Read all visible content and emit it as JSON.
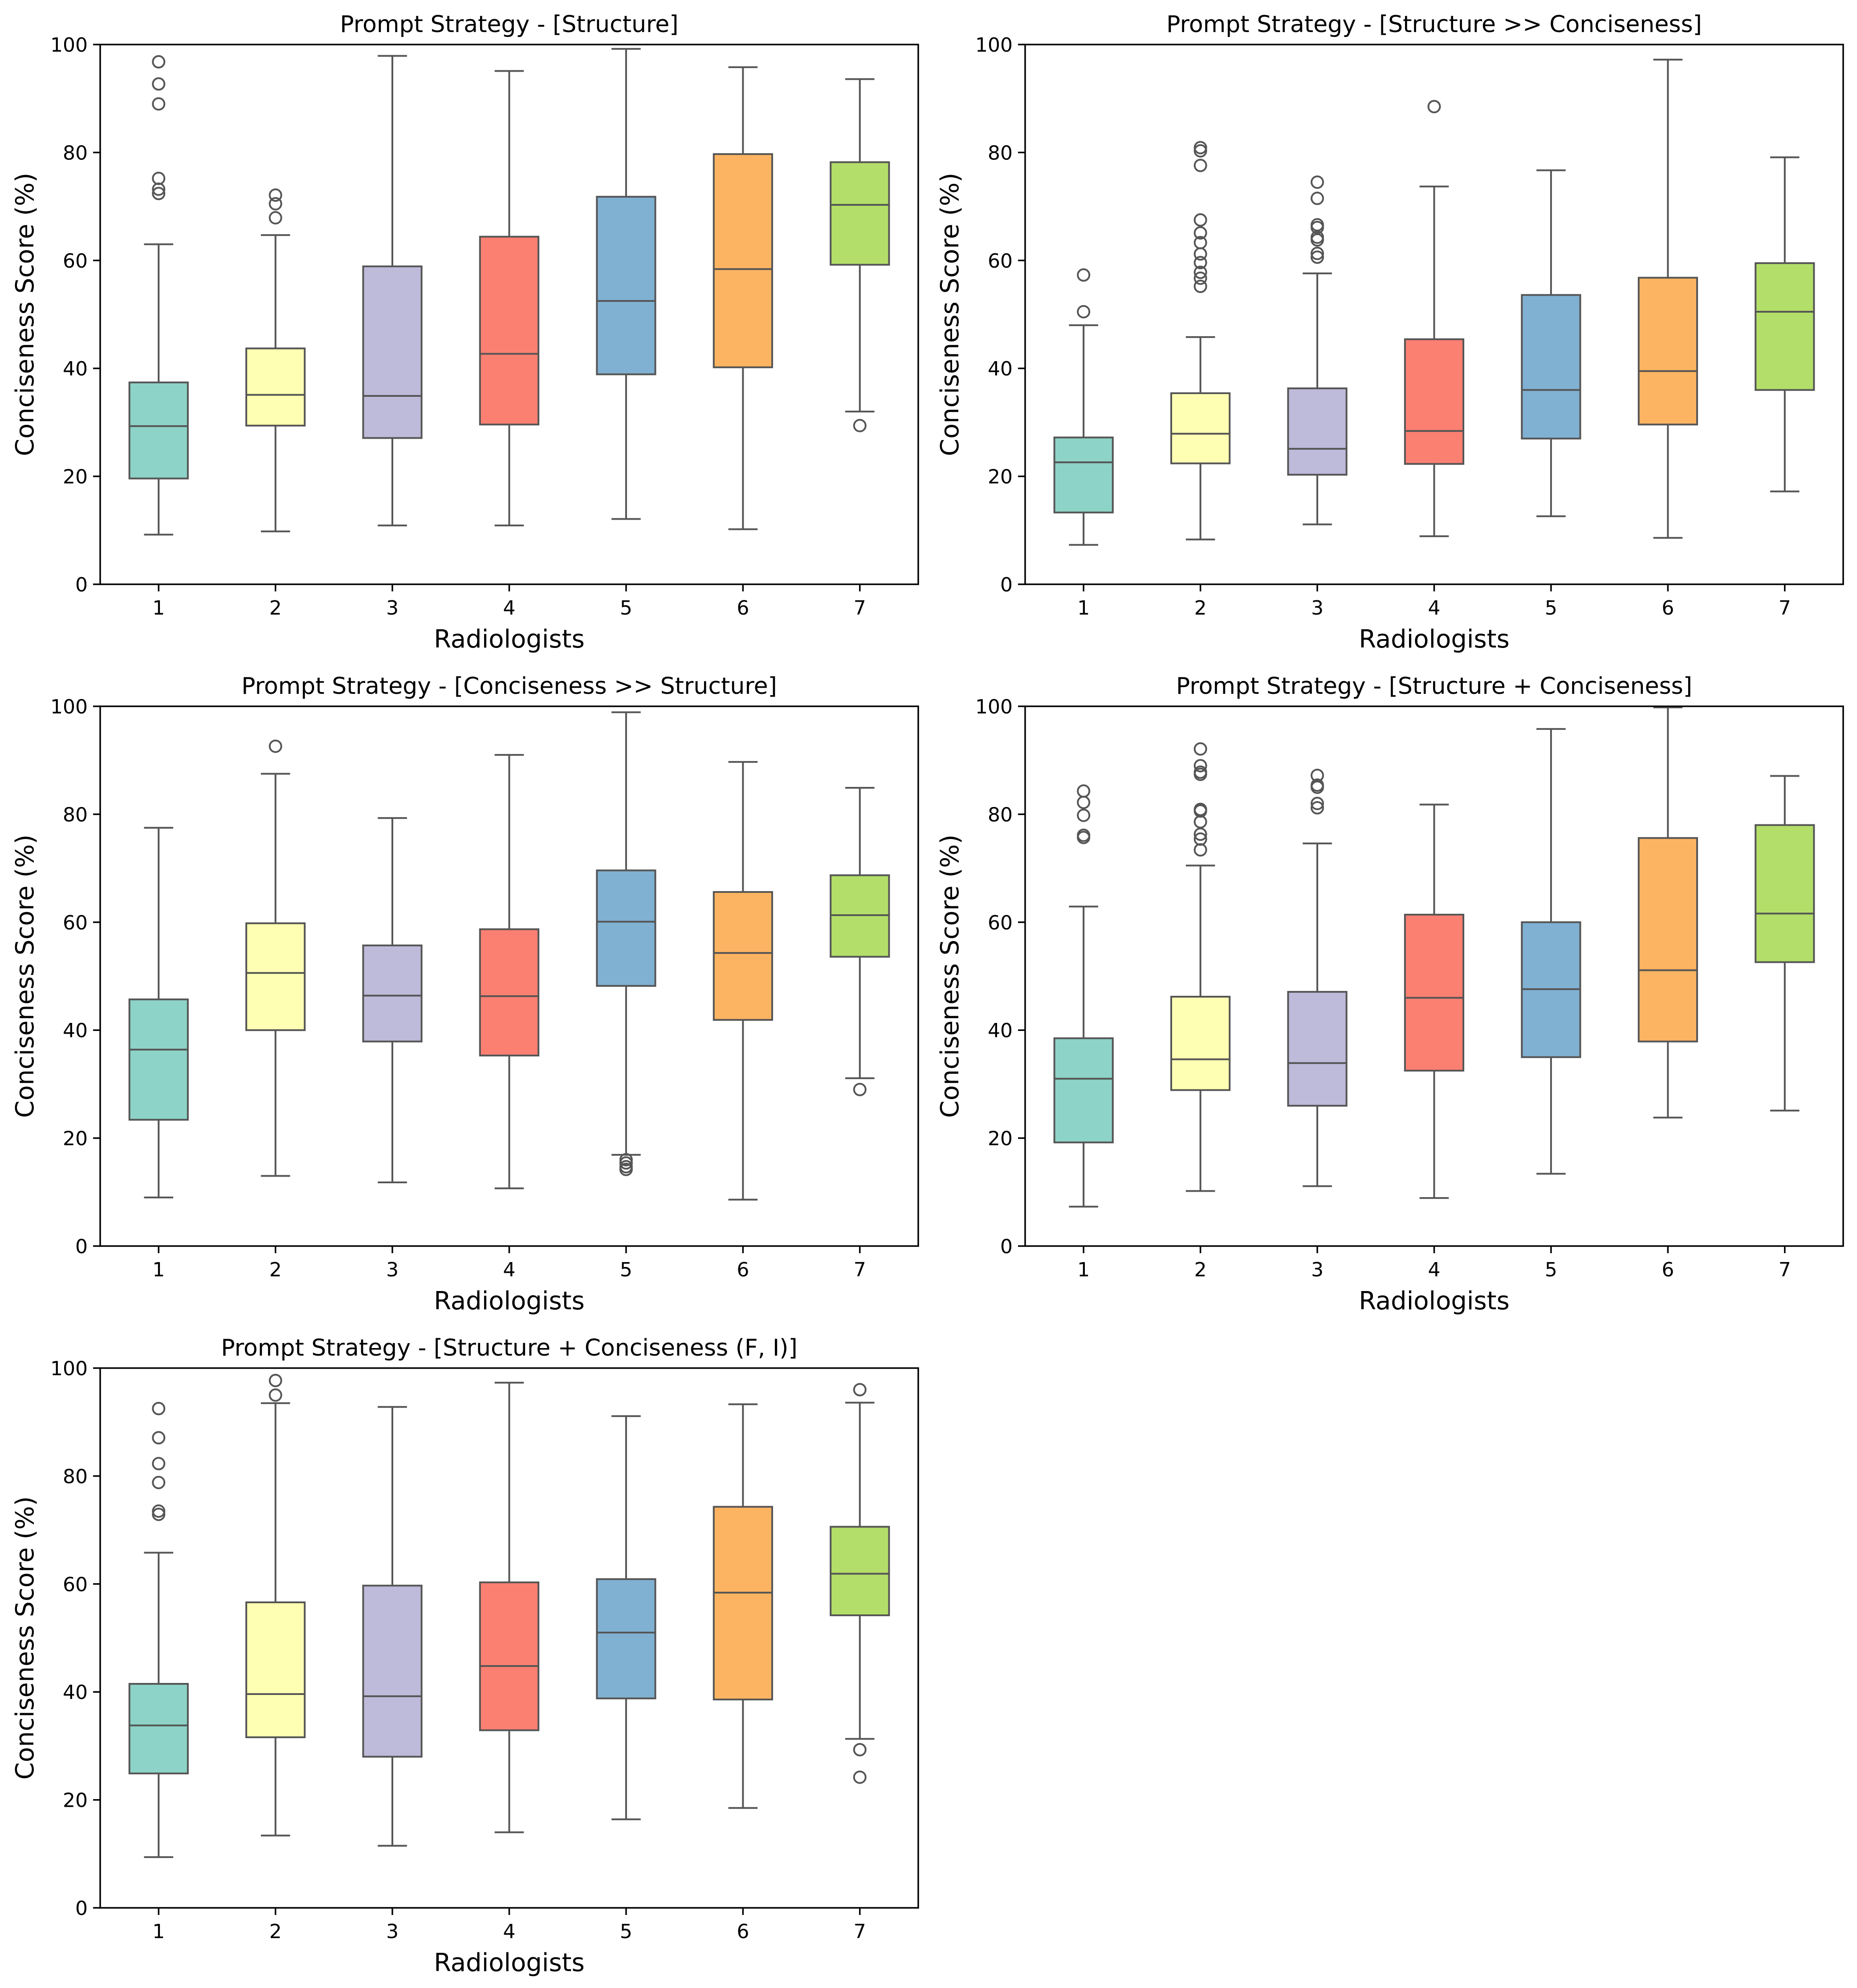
{
  "chart_data": [
    {
      "type": "box",
      "title": "Prompt Strategy - [Structure]",
      "xlabel": "Radiologists",
      "ylabel": "Conciseness Score (%)",
      "ylim": [
        0,
        100
      ],
      "yticks": [
        0,
        20,
        40,
        60,
        80,
        100
      ],
      "categories": [
        "1",
        "2",
        "3",
        "4",
        "5",
        "6",
        "7"
      ],
      "colors": [
        "#8dd3c7",
        "#ffffb3",
        "#bebada",
        "#fb8072",
        "#80b1d3",
        "#fdb462",
        "#b3de69"
      ],
      "boxes": [
        {
          "whislo": 9.2,
          "q1": 19.6,
          "med": 29.3,
          "q3": 37.4,
          "whishi": 63.0,
          "fliers": [
            72.4,
            73.2,
            75.2,
            89.0,
            92.7,
            96.8
          ]
        },
        {
          "whislo": 9.8,
          "q1": 29.4,
          "med": 35.1,
          "q3": 43.7,
          "whishi": 64.7,
          "fliers": [
            67.9,
            70.5,
            72.1
          ]
        },
        {
          "whislo": 10.9,
          "q1": 27.1,
          "med": 34.9,
          "q3": 58.9,
          "whishi": 97.9,
          "fliers": []
        },
        {
          "whislo": 10.9,
          "q1": 29.6,
          "med": 42.7,
          "q3": 64.4,
          "whishi": 95.1,
          "fliers": []
        },
        {
          "whislo": 12.1,
          "q1": 38.9,
          "med": 52.5,
          "q3": 71.8,
          "whishi": 99.2,
          "fliers": []
        },
        {
          "whislo": 10.2,
          "q1": 40.2,
          "med": 58.4,
          "q3": 79.7,
          "whishi": 95.8,
          "fliers": []
        },
        {
          "whislo": 32.0,
          "q1": 59.2,
          "med": 70.3,
          "q3": 78.2,
          "whishi": 93.6,
          "fliers": [
            29.4
          ]
        }
      ]
    },
    {
      "type": "box",
      "title": "Prompt Strategy - [Structure >> Conciseness]",
      "xlabel": "Radiologists",
      "ylabel": "Conciseness Score (%)",
      "ylim": [
        0,
        100
      ],
      "yticks": [
        0,
        20,
        40,
        60,
        80,
        100
      ],
      "categories": [
        "1",
        "2",
        "3",
        "4",
        "5",
        "6",
        "7"
      ],
      "colors": [
        "#8dd3c7",
        "#ffffb3",
        "#bebada",
        "#fb8072",
        "#80b1d3",
        "#fdb462",
        "#b3de69"
      ],
      "boxes": [
        {
          "whislo": 7.3,
          "q1": 13.3,
          "med": 22.6,
          "q3": 27.2,
          "whishi": 48.0,
          "fliers": [
            50.5,
            57.3
          ]
        },
        {
          "whislo": 8.3,
          "q1": 22.4,
          "med": 27.9,
          "q3": 35.4,
          "whishi": 45.8,
          "fliers": [
            55.2,
            56.7,
            57.8,
            59.6,
            61.2,
            63.3,
            65.1,
            67.5,
            77.6,
            80.3,
            80.9
          ]
        },
        {
          "whislo": 11.1,
          "q1": 20.3,
          "med": 25.1,
          "q3": 36.3,
          "whishi": 57.6,
          "fliers": [
            60.6,
            61.3,
            63.8,
            64.3,
            66.1,
            66.6,
            71.5,
            74.5
          ]
        },
        {
          "whislo": 8.9,
          "q1": 22.3,
          "med": 28.4,
          "q3": 45.4,
          "whishi": 73.7,
          "fliers": [
            88.5
          ]
        },
        {
          "whislo": 12.6,
          "q1": 27.0,
          "med": 36.0,
          "q3": 53.6,
          "whishi": 76.7,
          "fliers": []
        },
        {
          "whislo": 8.6,
          "q1": 29.6,
          "med": 39.5,
          "q3": 56.8,
          "whishi": 97.2,
          "fliers": []
        },
        {
          "whislo": 17.2,
          "q1": 36.0,
          "med": 50.5,
          "q3": 59.5,
          "whishi": 79.1,
          "fliers": []
        }
      ]
    },
    {
      "type": "box",
      "title": "Prompt Strategy - [Conciseness >> Structure]",
      "xlabel": "Radiologists",
      "ylabel": "Conciseness Score (%)",
      "ylim": [
        0,
        100
      ],
      "yticks": [
        0,
        20,
        40,
        60,
        80,
        100
      ],
      "categories": [
        "1",
        "2",
        "3",
        "4",
        "5",
        "6",
        "7"
      ],
      "colors": [
        "#8dd3c7",
        "#ffffb3",
        "#bebada",
        "#fb8072",
        "#80b1d3",
        "#fdb462",
        "#b3de69"
      ],
      "boxes": [
        {
          "whislo": 9.0,
          "q1": 23.4,
          "med": 36.4,
          "q3": 45.7,
          "whishi": 77.5,
          "fliers": []
        },
        {
          "whislo": 13.0,
          "q1": 40.0,
          "med": 50.6,
          "q3": 59.8,
          "whishi": 87.5,
          "fliers": [
            92.6
          ]
        },
        {
          "whislo": 11.8,
          "q1": 37.9,
          "med": 46.4,
          "q3": 55.7,
          "whishi": 79.3,
          "fliers": []
        },
        {
          "whislo": 10.7,
          "q1": 35.3,
          "med": 46.3,
          "q3": 58.7,
          "whishi": 91.0,
          "fliers": []
        },
        {
          "whislo": 16.9,
          "q1": 48.2,
          "med": 60.1,
          "q3": 69.6,
          "whishi": 98.9,
          "fliers": [
            14.2,
            14.7,
            15.4,
            16.0
          ]
        },
        {
          "whislo": 8.6,
          "q1": 41.9,
          "med": 54.3,
          "q3": 65.6,
          "whishi": 89.7,
          "fliers": []
        },
        {
          "whislo": 31.1,
          "q1": 53.6,
          "med": 61.3,
          "q3": 68.7,
          "whishi": 84.9,
          "fliers": [
            29.0
          ]
        }
      ]
    },
    {
      "type": "box",
      "title": "Prompt Strategy - [Structure + Conciseness]",
      "xlabel": "Radiologists",
      "ylabel": "Conciseness Score (%)",
      "ylim": [
        0,
        100
      ],
      "yticks": [
        0,
        20,
        40,
        60,
        80,
        100
      ],
      "categories": [
        "1",
        "2",
        "3",
        "4",
        "5",
        "6",
        "7"
      ],
      "colors": [
        "#8dd3c7",
        "#ffffb3",
        "#bebada",
        "#fb8072",
        "#80b1d3",
        "#fdb462",
        "#b3de69"
      ],
      "boxes": [
        {
          "whislo": 7.3,
          "q1": 19.2,
          "med": 31.0,
          "q3": 38.5,
          "whishi": 62.9,
          "fliers": [
            75.7,
            76.1,
            79.8,
            82.2,
            84.3
          ]
        },
        {
          "whislo": 10.2,
          "q1": 28.9,
          "med": 34.6,
          "q3": 46.2,
          "whishi": 70.5,
          "fliers": [
            73.4,
            75.4,
            76.3,
            78.6,
            80.6,
            80.9,
            87.4,
            87.8,
            89.0,
            92.1
          ]
        },
        {
          "whislo": 11.1,
          "q1": 26.0,
          "med": 33.9,
          "q3": 47.1,
          "whishi": 74.6,
          "fliers": [
            81.2,
            82.0,
            85.0,
            85.4,
            87.2
          ]
        },
        {
          "whislo": 8.9,
          "q1": 32.5,
          "med": 46.0,
          "q3": 61.4,
          "whishi": 81.8,
          "fliers": []
        },
        {
          "whislo": 13.4,
          "q1": 35.0,
          "med": 47.6,
          "q3": 60.0,
          "whishi": 95.8,
          "fliers": []
        },
        {
          "whislo": 23.8,
          "q1": 37.9,
          "med": 51.1,
          "q3": 75.6,
          "whishi": 99.8,
          "fliers": []
        },
        {
          "whislo": 25.1,
          "q1": 52.6,
          "med": 61.6,
          "q3": 78.0,
          "whishi": 87.1,
          "fliers": []
        }
      ]
    },
    {
      "type": "box",
      "title": "Prompt Strategy - [Structure + Conciseness (F, I)]",
      "xlabel": "Radiologists",
      "ylabel": "Conciseness Score (%)",
      "ylim": [
        0,
        100
      ],
      "yticks": [
        0,
        20,
        40,
        60,
        80,
        100
      ],
      "categories": [
        "1",
        "2",
        "3",
        "4",
        "5",
        "6",
        "7"
      ],
      "colors": [
        "#8dd3c7",
        "#ffffb3",
        "#bebada",
        "#fb8072",
        "#80b1d3",
        "#fdb462",
        "#b3de69"
      ],
      "boxes": [
        {
          "whislo": 9.4,
          "q1": 24.9,
          "med": 33.8,
          "q3": 41.5,
          "whishi": 65.8,
          "fliers": [
            72.9,
            73.5,
            78.8,
            82.3,
            87.1,
            92.5
          ]
        },
        {
          "whislo": 13.4,
          "q1": 31.6,
          "med": 39.6,
          "q3": 56.6,
          "whishi": 93.5,
          "fliers": [
            95.0,
            97.7
          ]
        },
        {
          "whislo": 11.5,
          "q1": 28.0,
          "med": 39.2,
          "q3": 59.7,
          "whishi": 92.8,
          "fliers": []
        },
        {
          "whislo": 14.0,
          "q1": 32.9,
          "med": 44.8,
          "q3": 60.3,
          "whishi": 97.3,
          "fliers": []
        },
        {
          "whislo": 16.4,
          "q1": 38.8,
          "med": 51.0,
          "q3": 60.9,
          "whishi": 91.1,
          "fliers": []
        },
        {
          "whislo": 18.5,
          "q1": 38.6,
          "med": 58.4,
          "q3": 74.3,
          "whishi": 93.3,
          "fliers": []
        },
        {
          "whislo": 31.3,
          "q1": 54.2,
          "med": 61.9,
          "q3": 70.6,
          "whishi": 93.6,
          "fliers": [
            24.2,
            29.3,
            96.0
          ]
        }
      ]
    }
  ]
}
